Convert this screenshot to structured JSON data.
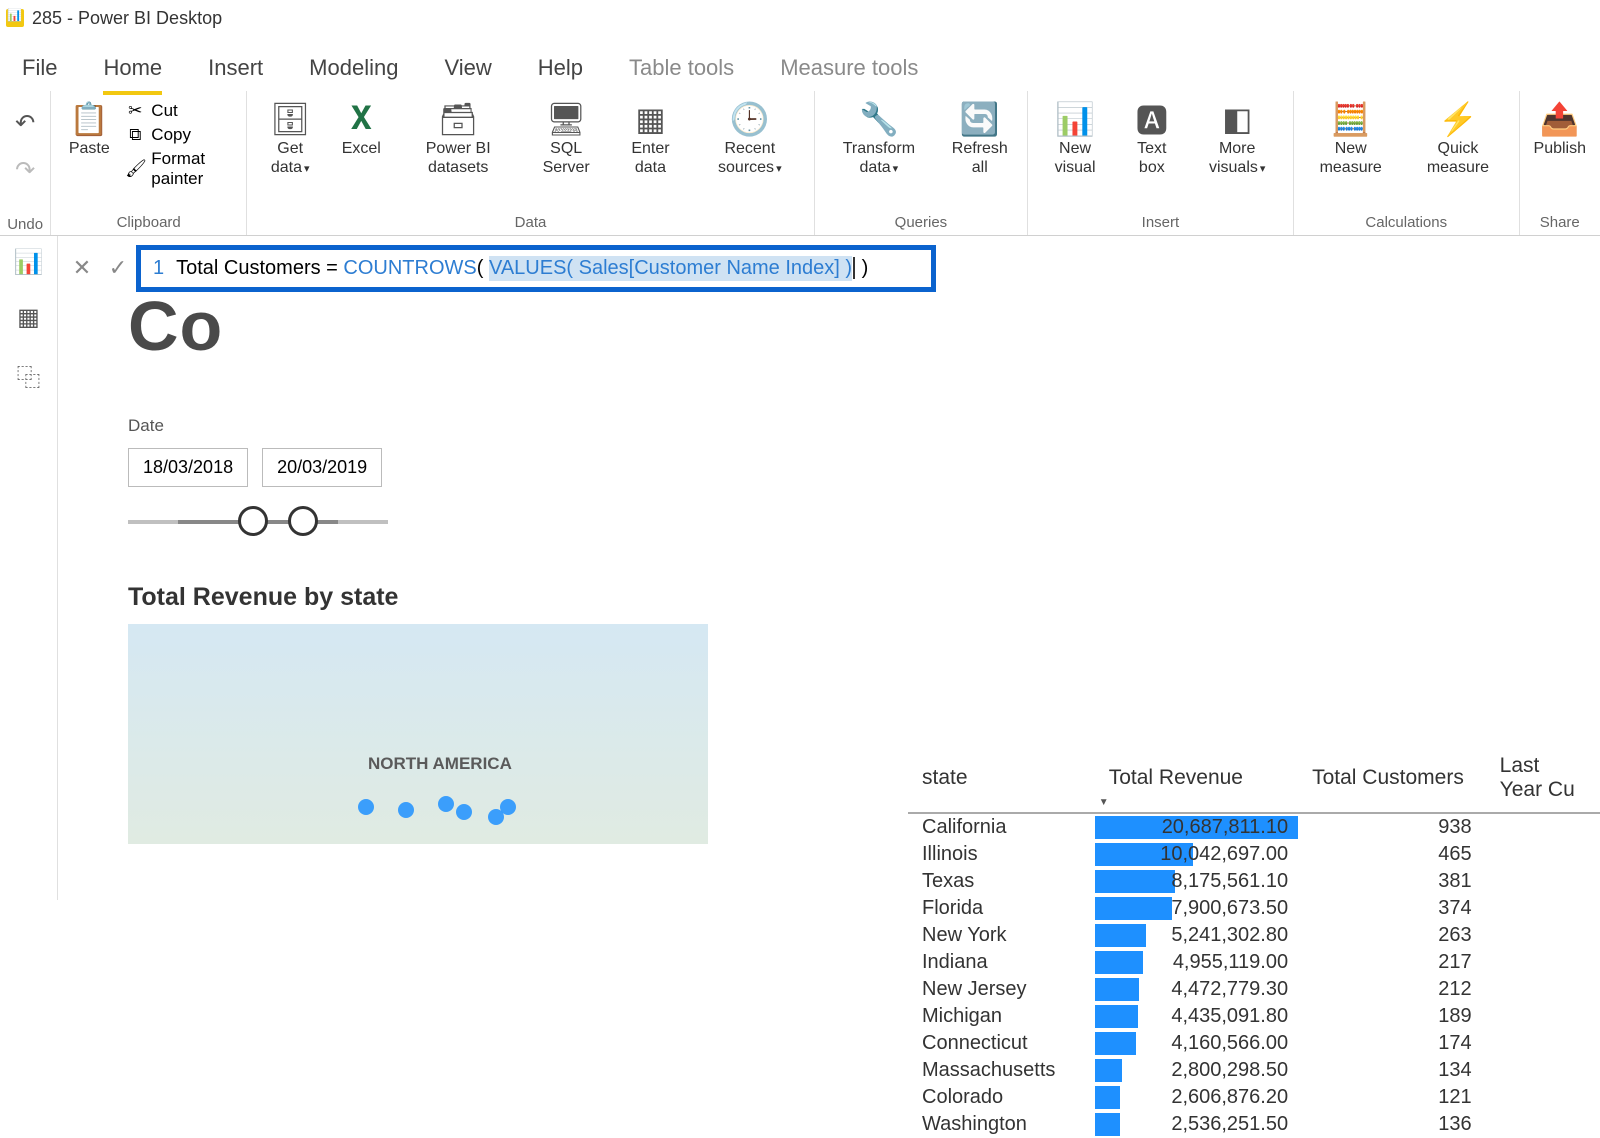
{
  "app": {
    "title": "285 - Power BI Desktop"
  },
  "menu": {
    "tabs": [
      "File",
      "Home",
      "Insert",
      "Modeling",
      "View",
      "Help",
      "Table tools",
      "Measure tools"
    ],
    "active": 1,
    "contextual_start": 6
  },
  "ribbon": {
    "undo_label": "Undo",
    "clipboard": {
      "paste": "Paste",
      "cut": "Cut",
      "copy": "Copy",
      "format_painter": "Format painter",
      "group": "Clipboard"
    },
    "data": {
      "get_data": "Get\ndata",
      "excel": "Excel",
      "pbi_ds": "Power BI\ndatasets",
      "sql": "SQL\nServer",
      "enter": "Enter\ndata",
      "recent": "Recent\nsources",
      "group": "Data"
    },
    "queries": {
      "transform": "Transform\ndata",
      "refresh": "Refresh\nall",
      "group": "Queries"
    },
    "insert": {
      "new_visual": "New\nvisual",
      "text_box": "Text\nbox",
      "more": "More\nvisuals",
      "group": "Insert"
    },
    "calc": {
      "new_measure": "New\nmeasure",
      "quick": "Quick\nmeasure",
      "group": "Calculations"
    },
    "share": {
      "publish": "Publish",
      "group": "Share"
    }
  },
  "formula": {
    "line_no": "1",
    "p1": "Total Customers = ",
    "fn1": "COUNTROWS",
    "p2": "( ",
    "hl": "VALUES( Sales[Customer Name Index] )",
    "p3": " )"
  },
  "canvas": {
    "title_fragment": "Co",
    "date_label": "Date",
    "date_from": "18/03/2018",
    "date_to": "20/03/2019",
    "map_title": "Total Revenue by state",
    "map_region_label": "NORTH AMERICA"
  },
  "table": {
    "columns": [
      "state",
      "Total Revenue",
      "Total Customers",
      "Last Year Cu"
    ],
    "max_revenue": 20687811.1,
    "rows": [
      {
        "state": "California",
        "rev": "20,687,811.10",
        "revnum": 20687811.1,
        "cust": "938"
      },
      {
        "state": "Illinois",
        "rev": "10,042,697.00",
        "revnum": 10042697.0,
        "cust": "465"
      },
      {
        "state": "Texas",
        "rev": "8,175,561.10",
        "revnum": 8175561.1,
        "cust": "381"
      },
      {
        "state": "Florida",
        "rev": "7,900,673.50",
        "revnum": 7900673.5,
        "cust": "374"
      },
      {
        "state": "New York",
        "rev": "5,241,302.80",
        "revnum": 5241302.8,
        "cust": "263"
      },
      {
        "state": "Indiana",
        "rev": "4,955,119.00",
        "revnum": 4955119.0,
        "cust": "217"
      },
      {
        "state": "New Jersey",
        "rev": "4,472,779.30",
        "revnum": 4472779.3,
        "cust": "212"
      },
      {
        "state": "Michigan",
        "rev": "4,435,091.80",
        "revnum": 4435091.8,
        "cust": "189"
      },
      {
        "state": "Connecticut",
        "rev": "4,160,566.00",
        "revnum": 4160566.0,
        "cust": "174"
      },
      {
        "state": "Massachusetts",
        "rev": "2,800,298.50",
        "revnum": 2800298.5,
        "cust": "134"
      },
      {
        "state": "Colorado",
        "rev": "2,606,876.20",
        "revnum": 2606876.2,
        "cust": "121"
      },
      {
        "state": "Washington",
        "rev": "2,536,251.50",
        "revnum": 2536251.5,
        "cust": "136"
      }
    ]
  },
  "colors": {
    "accent": "#f2c811",
    "formula_border": "#0b63ce",
    "bar": "#1e90ff"
  }
}
